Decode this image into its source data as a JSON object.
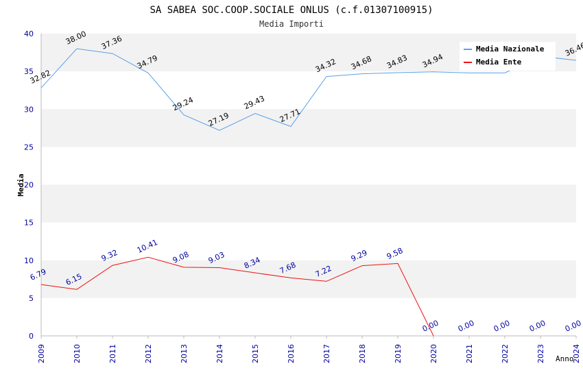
{
  "chart_data": {
    "type": "line",
    "title": "SA SABEA SOC.COOP.SOCIALE ONLUS (c.f.01307100915)",
    "subtitle": "Media Importi",
    "xlabel": "Anno",
    "ylabel": "Media",
    "ylim": [
      0,
      40
    ],
    "yticks": [
      0,
      5,
      10,
      15,
      20,
      25,
      30,
      35,
      40
    ],
    "x": [
      "2009",
      "2010",
      "2011",
      "2012",
      "2013",
      "2014",
      "2015",
      "2016",
      "2017",
      "2018",
      "2019",
      "2020",
      "2021",
      "2022",
      "2023",
      "2024"
    ],
    "grid": "horizontal alternating bands",
    "legend_position": "top-right",
    "series": [
      {
        "name": "Media Nazionale",
        "color": "#5aa0e6",
        "values": [
          32.82,
          38.0,
          37.36,
          34.79,
          29.24,
          27.19,
          29.43,
          27.71,
          34.32,
          34.68,
          34.83,
          34.94,
          34.8,
          34.8,
          37.0,
          36.46
        ],
        "labels": [
          "32.82",
          "38.00",
          "37.36",
          "34.79",
          "29.24",
          "27.19",
          "29.43",
          "27.71",
          "34.32",
          "34.68",
          "34.83",
          "34.94",
          "",
          "",
          "",
          "36.46"
        ]
      },
      {
        "name": "Media Ente",
        "color": "#ee1111",
        "values": [
          6.79,
          6.15,
          9.32,
          10.41,
          9.08,
          9.03,
          8.34,
          7.68,
          7.22,
          9.29,
          9.58,
          0.0,
          null,
          null,
          null,
          null
        ],
        "labels": [
          "6.79",
          "6.15",
          "9.32",
          "10.41",
          "9.08",
          "9.03",
          "8.34",
          "7.68",
          "7.22",
          "9.29",
          "9.58",
          "0.00",
          "0.00",
          "0.00",
          "0.00",
          "0.00"
        ]
      }
    ]
  },
  "colors": {
    "band": "#f2f2f2",
    "axis": "#bbbbbb",
    "tick_text": "#0000a0"
  }
}
